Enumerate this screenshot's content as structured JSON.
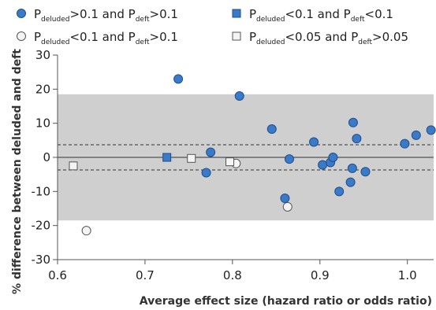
{
  "chart_data": {
    "type": "scatter",
    "xlabel": "Average effect size (hazard ratio or odds ratio)",
    "ylabel": "% difference between deluded and deft",
    "xlim": [
      0.6,
      1.03
    ],
    "ylim": [
      -30,
      30
    ],
    "xticks": [
      0.6,
      0.7,
      0.8,
      0.9,
      1.0
    ],
    "xtick_labels": [
      "0.6",
      "0.7",
      "0.8",
      "0.9",
      "1.0"
    ],
    "yticks": [
      30,
      20,
      10,
      0,
      -10,
      -20,
      -30
    ],
    "ytick_labels": [
      "30",
      "20",
      "10",
      "0",
      "-10",
      "-20",
      "-30"
    ],
    "bands": {
      "outer": [
        -18.5,
        18.5
      ],
      "dashed": [
        -3.7,
        3.7
      ]
    },
    "colors": {
      "band": "#cfcfcf",
      "blue": "#3a7ac6",
      "blue_edge": "#1e4f8f",
      "white": "#f4f4f4",
      "edge": "#555555"
    },
    "series": [
      {
        "marker": "circle-blue",
        "legend": {
          "p1": "P",
          "sub1": "deluded",
          "rel1": ">0.1 and P",
          "sub2": "deft",
          "rel2": ">0.1"
        },
        "points": [
          {
            "x": 0.738,
            "y": 23.0
          },
          {
            "x": 0.808,
            "y": 18.0
          },
          {
            "x": 0.775,
            "y": 1.5
          },
          {
            "x": 0.77,
            "y": -4.5
          },
          {
            "x": 0.845,
            "y": 8.3
          },
          {
            "x": 0.865,
            "y": -0.5
          },
          {
            "x": 0.86,
            "y": -12.0
          },
          {
            "x": 0.893,
            "y": 4.5
          },
          {
            "x": 0.903,
            "y": -2.2
          },
          {
            "x": 0.912,
            "y": -1.5
          },
          {
            "x": 0.915,
            "y": 0.0
          },
          {
            "x": 0.922,
            "y": -10.0
          },
          {
            "x": 0.935,
            "y": -7.3
          },
          {
            "x": 0.937,
            "y": -3.2
          },
          {
            "x": 0.938,
            "y": 10.2
          },
          {
            "x": 0.942,
            "y": 5.5
          },
          {
            "x": 0.952,
            "y": -4.2
          },
          {
            "x": 0.997,
            "y": 4.0
          },
          {
            "x": 1.01,
            "y": 6.5
          },
          {
            "x": 1.027,
            "y": 8.0
          }
        ]
      },
      {
        "marker": "square-blue",
        "legend": {
          "p1": "P",
          "sub1": "deluded",
          "rel1": "<0.1 and P",
          "sub2": "deft",
          "rel2": "<0.1"
        },
        "points": [
          {
            "x": 0.725,
            "y": 0.0
          }
        ]
      },
      {
        "marker": "circle-white",
        "legend": {
          "p1": "P",
          "sub1": "deluded",
          "rel1": "<0.1 and P",
          "sub2": "deft",
          "rel2": ">0.1"
        },
        "points": [
          {
            "x": 0.633,
            "y": -21.5
          },
          {
            "x": 0.804,
            "y": -1.8
          },
          {
            "x": 0.863,
            "y": -14.5
          }
        ]
      },
      {
        "marker": "square-white",
        "legend": {
          "p1": "P",
          "sub1": "deluded",
          "rel1": "<0.05 and P",
          "sub2": "deft",
          "rel2": ">0.05"
        },
        "points": [
          {
            "x": 0.618,
            "y": -2.5
          },
          {
            "x": 0.753,
            "y": -0.3
          },
          {
            "x": 0.797,
            "y": -1.3
          }
        ]
      }
    ]
  }
}
